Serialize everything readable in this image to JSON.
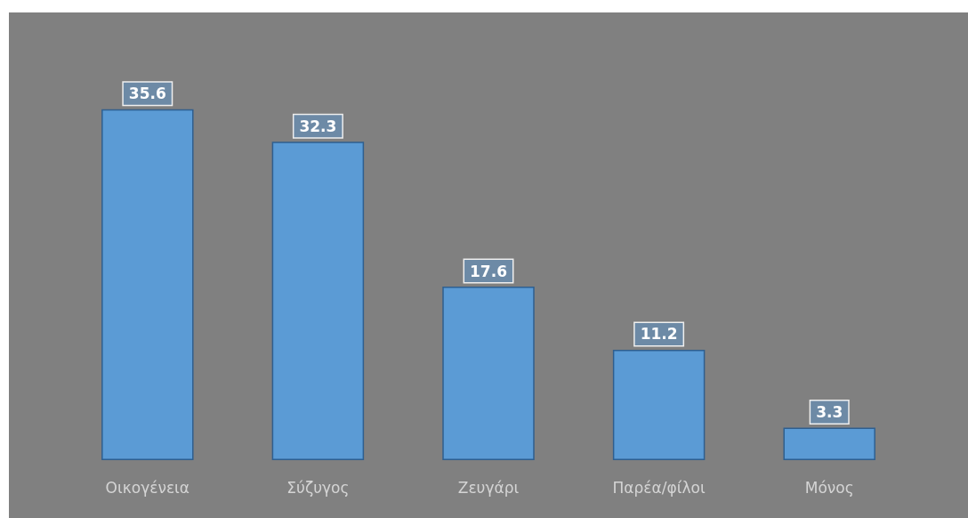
{
  "chart_data": {
    "type": "bar",
    "categories": [
      "Οικογένεια",
      "Σύζυγος",
      "Ζευγάρι",
      "Παρέα/φίλοι",
      "Μόνος"
    ],
    "values": [
      35.6,
      32.3,
      17.6,
      11.2,
      3.3
    ],
    "color": "#5b9bd5",
    "data_labels": true
  }
}
